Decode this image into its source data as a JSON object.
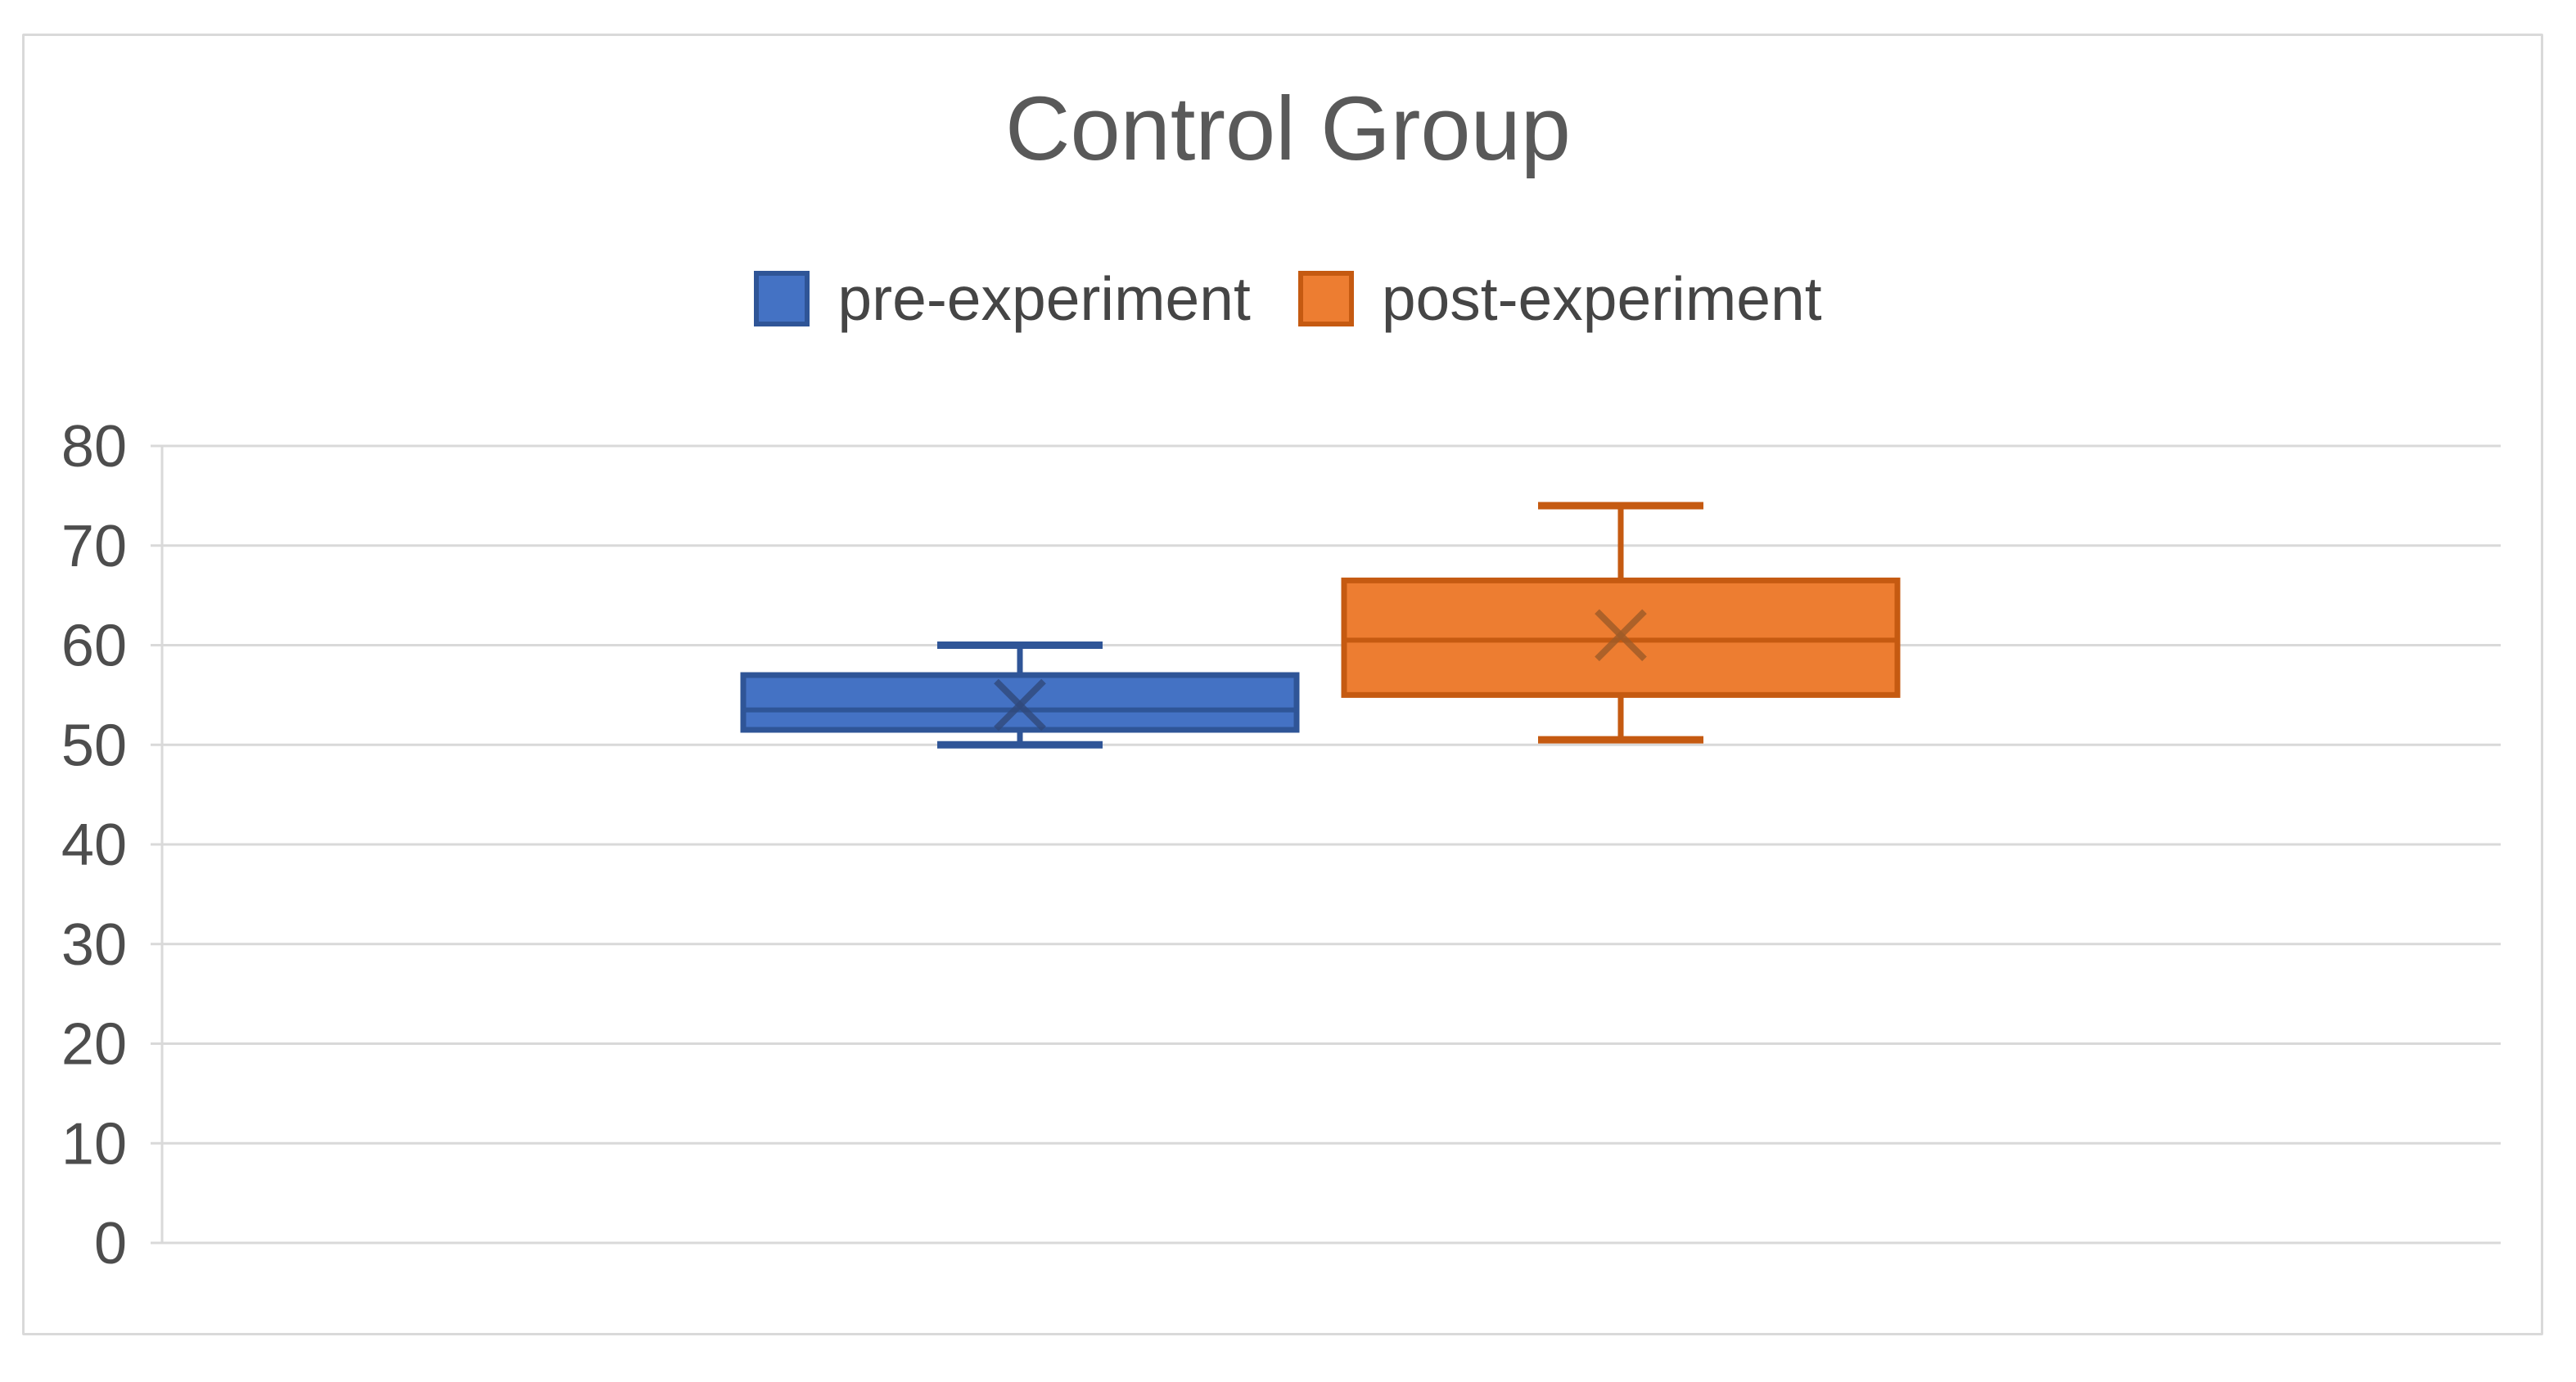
{
  "chart_title": "Control Group",
  "legend": {
    "items": [
      {
        "label": "pre-experiment"
      },
      {
        "label": "post-experiment"
      }
    ]
  },
  "colors": {
    "gridline": "#D9D9D9",
    "frame_border": "#D9D9D9",
    "title_text": "#595959",
    "axis_text": "#4d4d4d",
    "legend_text": "#454545"
  },
  "chart_data": {
    "type": "boxplot",
    "title": "Control Group",
    "xlabel": "",
    "ylabel": "",
    "ylim": [
      0,
      80
    ],
    "yticks": [
      0,
      10,
      20,
      30,
      40,
      50,
      60,
      70,
      80
    ],
    "grid": true,
    "legend_position": "top",
    "series": [
      {
        "name": "pre-experiment",
        "color": "#4472C4",
        "border_color": "#2F5597",
        "mean_marker_color": "#31497B",
        "min": 50,
        "q1": 51.5,
        "median": 53.5,
        "q3": 57,
        "max": 60,
        "mean": 54
      },
      {
        "name": "post-experiment",
        "color": "#ED7D31",
        "border_color": "#C55A11",
        "mean_marker_color": "#9E5B28",
        "min": 50.5,
        "q1": 55,
        "median": 60.5,
        "q3": 66.5,
        "max": 74,
        "mean": 61
      }
    ]
  }
}
